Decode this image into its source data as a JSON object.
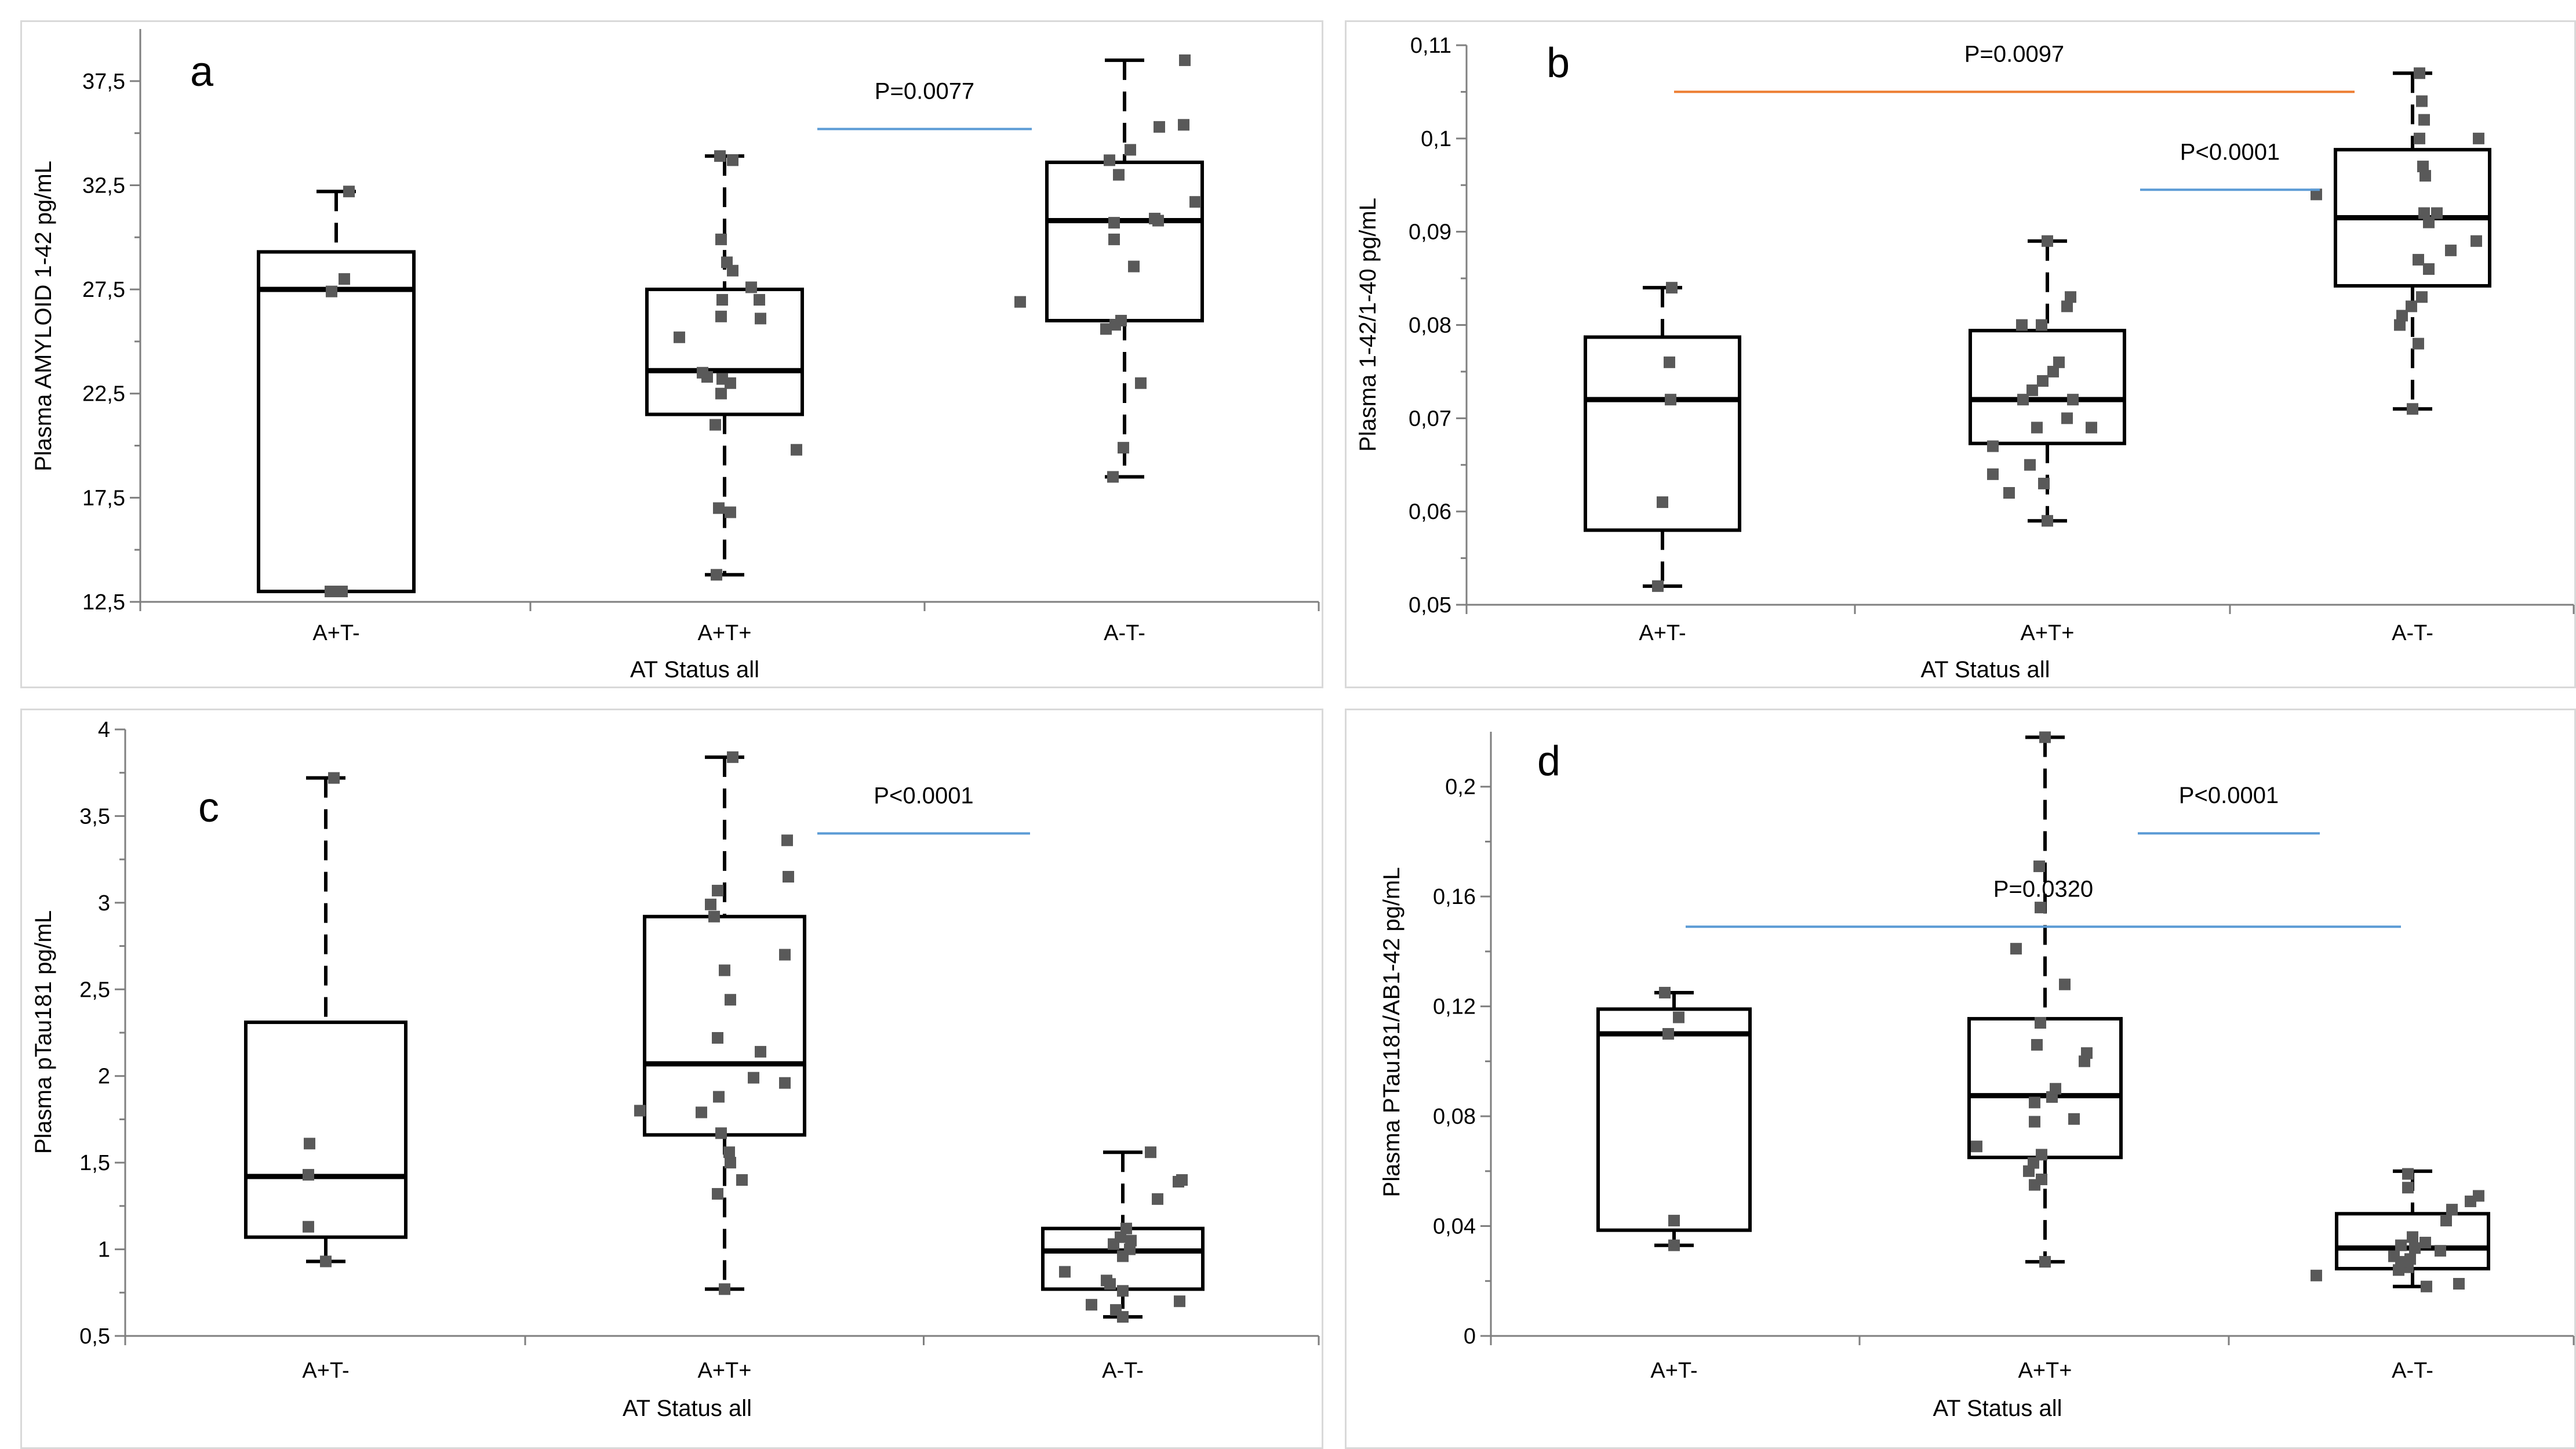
{
  "chart_data": [
    {
      "type": "box",
      "panel": "a",
      "title": "",
      "xlabel": "AT Status all",
      "ylabel": "Plasma AMYLOID 1-42 pg/mL",
      "ylim": [
        12.5,
        40
      ],
      "yticks": [
        12.5,
        17.5,
        22.5,
        27.5,
        32.5,
        37.5
      ],
      "ytick_labels": [
        "12,5",
        "17,5",
        "22,5",
        "27,5",
        "32,5",
        "37,5"
      ],
      "categories": [
        "A+T-",
        "A+T+",
        "A-T-"
      ],
      "boxes": [
        {
          "category": "A+T-",
          "min": 13.0,
          "q1": 13.0,
          "median": 27.5,
          "q3": 29.3,
          "max": 32.2
        },
        {
          "category": "A+T+",
          "min": 13.8,
          "q1": 21.5,
          "median": 23.6,
          "q3": 27.5,
          "max": 33.9
        },
        {
          "category": "A-T-",
          "min": 18.5,
          "q1": 26.0,
          "median": 30.8,
          "q3": 33.6,
          "max": 38.5
        }
      ],
      "points": [
        [
          13.0,
          13.0,
          27.4,
          28.0,
          32.2
        ],
        [
          13.8,
          16.8,
          17.0,
          19.8,
          21.0,
          22.5,
          23.0,
          23.2,
          23.3,
          23.5,
          25.2,
          26.1,
          26.2,
          27.0,
          27.0,
          27.6,
          28.4,
          28.8,
          29.9,
          33.7,
          33.9
        ],
        [
          18.5,
          19.9,
          23.0,
          25.6,
          25.8,
          26.0,
          26.9,
          28.6,
          29.9,
          30.7,
          30.8,
          30.9,
          31.7,
          33.0,
          33.7,
          34.2,
          35.3,
          35.4,
          38.5
        ]
      ],
      "significance": [
        {
          "label": "P=0.0077",
          "from": "A+T+",
          "to": "A-T-",
          "y": 35.2,
          "color": "#5b9bd5"
        }
      ]
    },
    {
      "type": "box",
      "panel": "b",
      "title": "",
      "xlabel": "AT Status all",
      "ylabel": "Plasma 1-42/1-40 pg/mL",
      "ylim": [
        0.05,
        0.11
      ],
      "yticks": [
        0.05,
        0.06,
        0.07,
        0.08,
        0.09,
        0.1,
        0.11
      ],
      "ytick_labels": [
        "0,05",
        "0,06",
        "0,07",
        "0,08",
        "0,09",
        "0,1",
        "0,11"
      ],
      "categories": [
        "A+T-",
        "A+T+",
        "A-T-"
      ],
      "boxes": [
        {
          "category": "A+T-",
          "min": 0.052,
          "q1": 0.058,
          "median": 0.072,
          "q3": 0.0787,
          "max": 0.084
        },
        {
          "category": "A+T+",
          "min": 0.059,
          "q1": 0.0673,
          "median": 0.072,
          "q3": 0.0794,
          "max": 0.089
        },
        {
          "category": "A-T-",
          "min": 0.071,
          "q1": 0.0842,
          "median": 0.0915,
          "q3": 0.0988,
          "max": 0.107
        }
      ],
      "points": [
        [
          0.052,
          0.061,
          0.072,
          0.076,
          0.084
        ],
        [
          0.059,
          0.062,
          0.063,
          0.064,
          0.065,
          0.067,
          0.069,
          0.069,
          0.07,
          0.072,
          0.072,
          0.073,
          0.074,
          0.075,
          0.076,
          0.08,
          0.08,
          0.082,
          0.083,
          0.089
        ],
        [
          0.071,
          0.078,
          0.08,
          0.081,
          0.082,
          0.083,
          0.086,
          0.087,
          0.088,
          0.089,
          0.091,
          0.092,
          0.092,
          0.094,
          0.096,
          0.097,
          0.1,
          0.1,
          0.102,
          0.104,
          0.107
        ]
      ],
      "significance": [
        {
          "label": "P=0.0097",
          "from": "A+T-",
          "to": "A-T-",
          "y": 0.105,
          "color": "#ed7d31"
        },
        {
          "label": "P<0.0001",
          "from": "A+T+",
          "to": "A-T-",
          "y": 0.0945,
          "color": "#5b9bd5"
        }
      ]
    },
    {
      "type": "box",
      "panel": "c",
      "title": "",
      "xlabel": "AT Status all",
      "ylabel": "Plasma pTau181 pg/mL",
      "ylim": [
        0.5,
        4
      ],
      "yticks": [
        0.5,
        1,
        1.5,
        2,
        2.5,
        3,
        3.5,
        4
      ],
      "ytick_labels": [
        "0,5",
        "1",
        "1,5",
        "2",
        "2,5",
        "3",
        "3,5",
        "4"
      ],
      "categories": [
        "A+T-",
        "A+T+",
        "A-T-"
      ],
      "boxes": [
        {
          "category": "A+T-",
          "min": 0.93,
          "q1": 1.07,
          "median": 1.42,
          "q3": 2.31,
          "max": 3.72
        },
        {
          "category": "A+T+",
          "min": 0.77,
          "q1": 1.66,
          "median": 2.07,
          "q3": 2.92,
          "max": 3.84
        },
        {
          "category": "A-T-",
          "min": 0.61,
          "q1": 0.77,
          "median": 0.99,
          "q3": 1.12,
          "max": 1.56
        }
      ],
      "points": [
        [
          0.93,
          1.13,
          1.43,
          1.61,
          3.72
        ],
        [
          0.77,
          1.32,
          1.4,
          1.5,
          1.56,
          1.67,
          1.79,
          1.8,
          1.88,
          1.96,
          1.99,
          2.14,
          2.22,
          2.44,
          2.61,
          2.7,
          2.92,
          2.99,
          3.07,
          3.15,
          3.36,
          3.84
        ],
        [
          0.61,
          0.65,
          0.68,
          0.7,
          0.76,
          0.8,
          0.82,
          0.87,
          0.96,
          1.0,
          1.03,
          1.05,
          1.07,
          1.12,
          1.29,
          1.39,
          1.4,
          1.56
        ]
      ],
      "significance": [
        {
          "label": "P<0.0001",
          "from": "A+T+",
          "to": "A-T-",
          "y": 3.4,
          "color": "#5b9bd5"
        }
      ]
    },
    {
      "type": "box",
      "panel": "d",
      "title": "",
      "xlabel": "AT Status all",
      "ylabel": "Plasma PTau181/AB1-42 pg/mL",
      "ylim": [
        0,
        0.22
      ],
      "yticks": [
        0,
        0.04,
        0.08,
        0.12,
        0.16,
        0.2
      ],
      "ytick_labels": [
        "0",
        "0,04",
        "0,08",
        "0,12",
        "0,16",
        "0,2"
      ],
      "categories": [
        "A+T-",
        "A+T+",
        "A-T-"
      ],
      "boxes": [
        {
          "category": "A+T-",
          "min": 0.033,
          "q1": 0.0385,
          "median": 0.11,
          "q3": 0.119,
          "max": 0.125
        },
        {
          "category": "A+T+",
          "min": 0.027,
          "q1": 0.065,
          "median": 0.0875,
          "q3": 0.1155,
          "max": 0.218
        },
        {
          "category": "A-T-",
          "min": 0.018,
          "q1": 0.0245,
          "median": 0.032,
          "q3": 0.0445,
          "max": 0.06
        }
      ],
      "points": [
        [
          0.033,
          0.042,
          0.11,
          0.116,
          0.125
        ],
        [
          0.027,
          0.055,
          0.057,
          0.06,
          0.063,
          0.066,
          0.069,
          0.078,
          0.079,
          0.085,
          0.087,
          0.09,
          0.1,
          0.103,
          0.106,
          0.114,
          0.128,
          0.141,
          0.156,
          0.171,
          0.218
        ],
        [
          0.018,
          0.019,
          0.022,
          0.024,
          0.025,
          0.027,
          0.028,
          0.029,
          0.031,
          0.032,
          0.033,
          0.034,
          0.036,
          0.042,
          0.046,
          0.049,
          0.051,
          0.054,
          0.059
        ]
      ],
      "significance": [
        {
          "label": "P<0.0001",
          "from": "A+T+",
          "to": "A-T-",
          "y": 0.183,
          "color": "#5b9bd5"
        },
        {
          "label": "P=0.0320",
          "from": "A+T-",
          "to": "A-T-",
          "y": 0.149,
          "color": "#5b9bd5"
        }
      ]
    }
  ]
}
